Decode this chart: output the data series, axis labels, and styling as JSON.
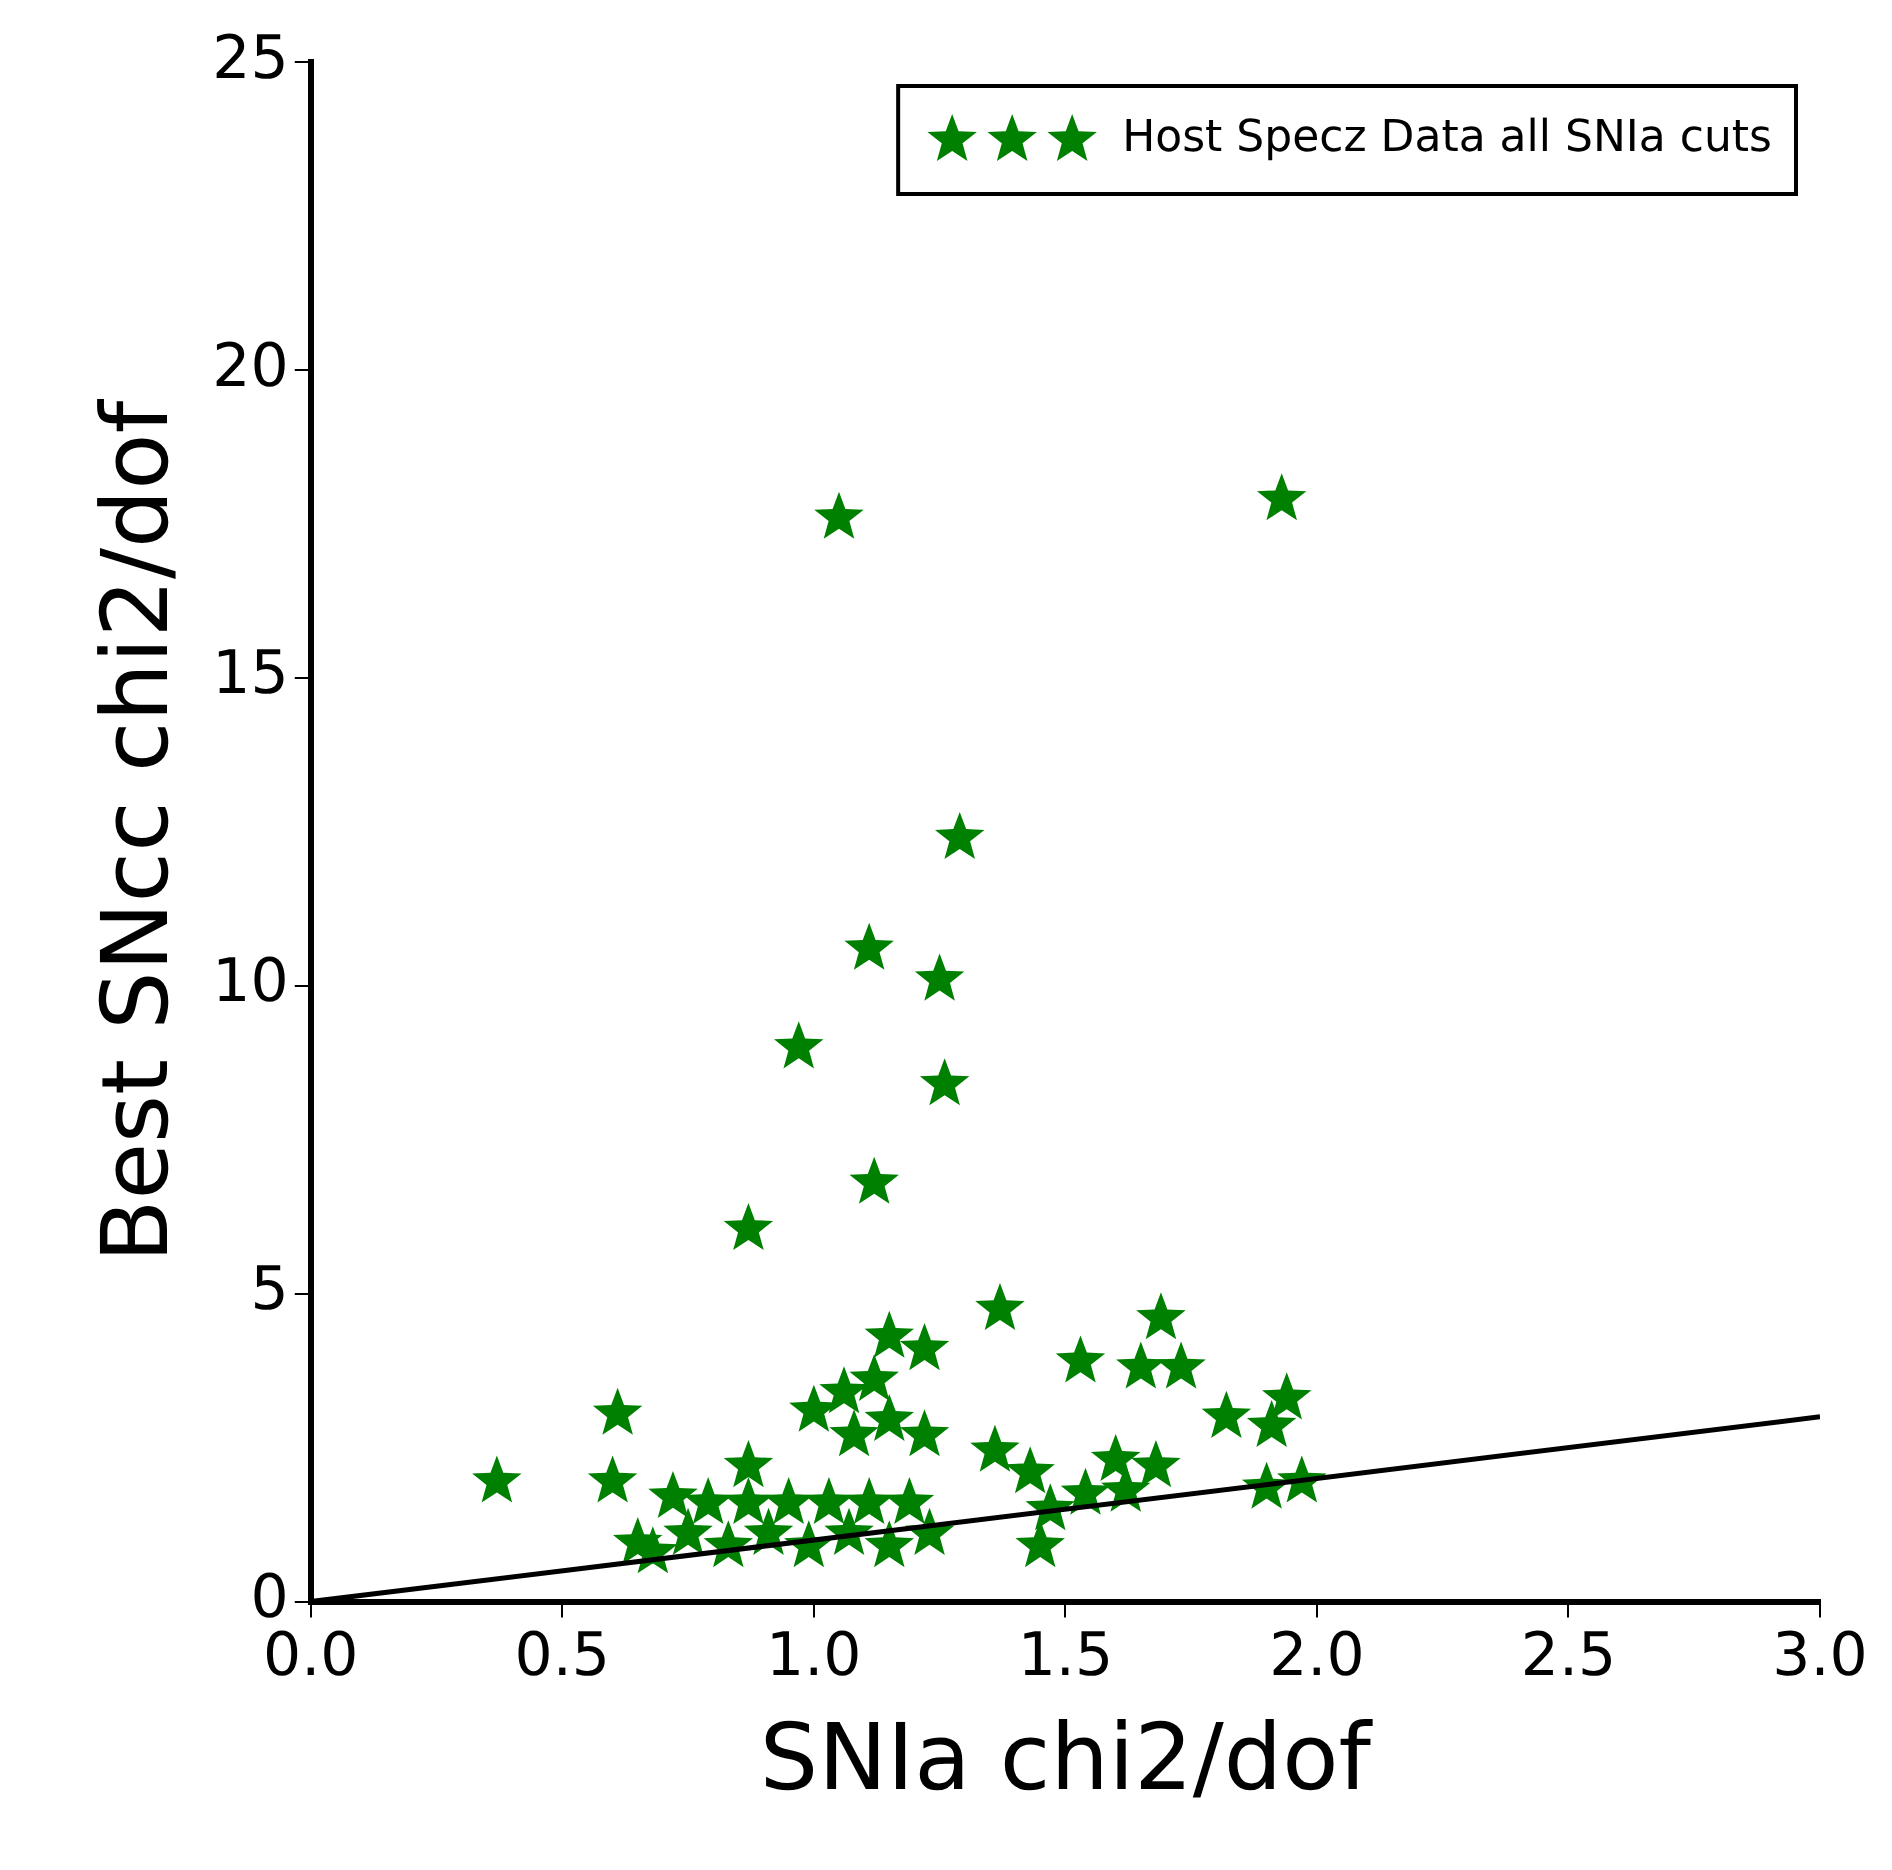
{
  "chart_data": {
    "type": "scatter",
    "xlabel": "SNIa chi2/dof",
    "ylabel": "Best SNcc chi2/dof",
    "xlim": [
      0,
      3
    ],
    "ylim": [
      0,
      25
    ],
    "xticks": [
      {
        "value": 0,
        "label": "0.0"
      },
      {
        "value": 0.5,
        "label": "0.5"
      },
      {
        "value": 1,
        "label": "1.0"
      },
      {
        "value": 1.5,
        "label": "1.5"
      },
      {
        "value": 2,
        "label": "2.0"
      },
      {
        "value": 2.5,
        "label": "2.5"
      },
      {
        "value": 3,
        "label": "3.0"
      }
    ],
    "yticks": [
      0,
      5,
      10,
      15,
      20,
      25
    ],
    "grid": false,
    "legend": "top right",
    "marker": "star",
    "series": [
      {
        "name": "Host Specz Data all SNIa cuts",
        "color": "#008000",
        "x": [
          1.05,
          1.93,
          1.29,
          1.11,
          1.25,
          0.97,
          1.26,
          1.12,
          0.87,
          0.37,
          0.6,
          0.61,
          0.65,
          0.72,
          0.87,
          1.0,
          1.06,
          1.12,
          1.15,
          1.22,
          1.37,
          1.53,
          1.65,
          1.69,
          1.73,
          1.82,
          1.94,
          1.91,
          1.36,
          1.43,
          1.45,
          1.54,
          1.6,
          1.68,
          1.62,
          1.9,
          1.97,
          1.08,
          1.15,
          1.22,
          0.75,
          0.83,
          0.91,
          0.99,
          1.07,
          1.15,
          1.23,
          0.79,
          0.87,
          0.95,
          1.03,
          1.11,
          1.19,
          1.47,
          0.68
        ],
        "values": [
          17.6,
          17.9,
          12.4,
          10.6,
          10.1,
          9.0,
          8.4,
          6.8,
          6.05,
          1.95,
          1.95,
          3.05,
          0.95,
          1.7,
          2.2,
          3.1,
          3.4,
          3.6,
          4.3,
          4.1,
          4.75,
          3.9,
          3.8,
          4.6,
          3.8,
          3.0,
          3.3,
          2.85,
          2.45,
          2.1,
          0.9,
          1.75,
          2.3,
          2.2,
          1.8,
          1.85,
          1.95,
          2.7,
          2.95,
          2.7,
          1.1,
          0.9,
          1.1,
          0.9,
          1.1,
          0.9,
          1.1,
          1.6,
          1.6,
          1.6,
          1.6,
          1.6,
          1.6,
          1.5,
          0.8
        ]
      },
      {
        "type": "line",
        "color": "#000000",
        "x": [
          0,
          3
        ],
        "values": [
          0,
          3
        ],
        "marker": "none"
      }
    ]
  }
}
